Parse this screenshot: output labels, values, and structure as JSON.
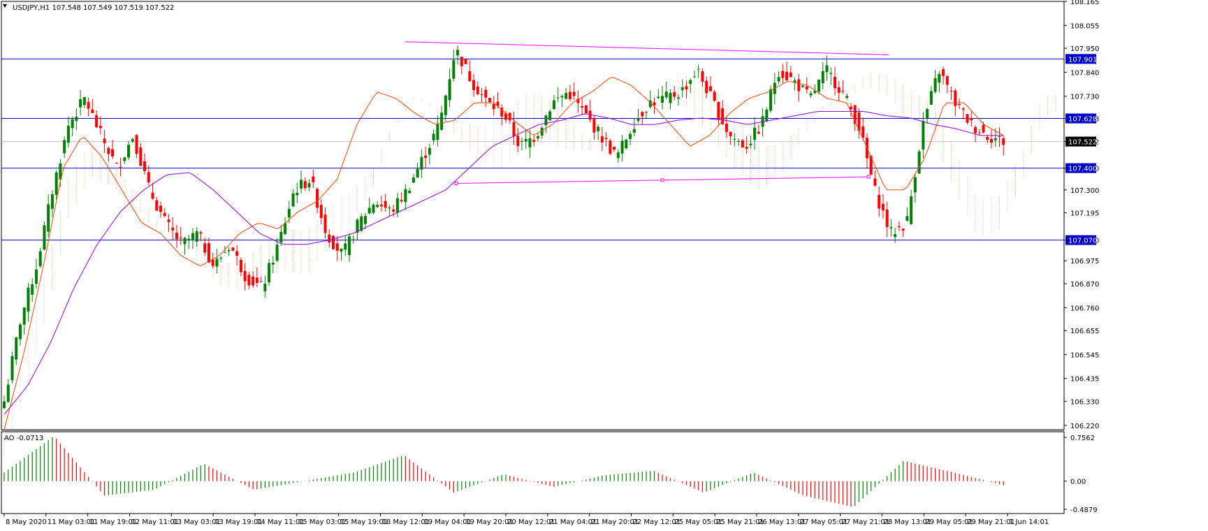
{
  "window": {
    "header": "USDJPY,H1  107.548 107.549 107.519 107.522",
    "ao_header": "AO -0.0713"
  },
  "colors": {
    "bull": "#008000",
    "bear": "#ff0000",
    "ma_fast": "#ff4500",
    "ma_slow": "#9400d3",
    "cloud": "#f4a460",
    "cloud_alt": "#d8bfd8",
    "level": "#0000cd",
    "trend": "#ff00ff",
    "current": "#c0c0c0"
  },
  "chart_data": {
    "type": "candlestick",
    "symbol": "USDJPY",
    "timeframe": "H1",
    "ylim": [
      106.2,
      108.165
    ],
    "price_ticks": [
      "108.165",
      "108.055",
      "107.950",
      "107.840",
      "107.730",
      "107.628",
      "107.522",
      "107.400",
      "107.300",
      "107.195",
      "107.070",
      "106.975",
      "106.870",
      "106.760",
      "106.655",
      "106.545",
      "106.435",
      "106.330",
      "106.220"
    ],
    "x_labels": [
      "8 May 2020",
      "11 May 03:01",
      "11 May 19:01",
      "12 May 11:01",
      "13 May 03:01",
      "13 May 19:01",
      "14 May 11:01",
      "15 May 03:01",
      "15 May 19:01",
      "18 May 12:01",
      "19 May 04:01",
      "19 May 20:01",
      "20 May 12:01",
      "21 May 04:01",
      "21 May 20:01",
      "22 May 12:01",
      "25 May 05:01",
      "25 May 21:01",
      "26 May 13:01",
      "27 May 05:01",
      "27 May 21:01",
      "28 May 13:01",
      "29 May 05:01",
      "29 May 21:01",
      "1 Jun 14:01"
    ],
    "horizontal_levels": [
      {
        "value": 107.901,
        "label": "107.901"
      },
      {
        "value": 107.628,
        "label": "107.628"
      },
      {
        "value": 107.4,
        "label": "107.400"
      },
      {
        "value": 107.07,
        "label": "107.070"
      }
    ],
    "current_price": {
      "value": 107.522,
      "label": "107.522"
    },
    "ohlc_last": {
      "open": 107.548,
      "high": 107.549,
      "low": 107.519,
      "close": 107.522
    },
    "trendlines": [
      {
        "from": [
          "19 May 2020",
          107.98
        ],
        "to": [
          "1 Jun 2020",
          107.92
        ]
      },
      {
        "from": [
          "19 May 2020",
          107.33
        ],
        "to": [
          "29 May 2020",
          107.36
        ]
      }
    ],
    "close_path": [
      106.33,
      106.7,
      106.95,
      107.3,
      107.6,
      107.72,
      107.55,
      107.4,
      107.55,
      107.3,
      107.15,
      107.05,
      107.1,
      106.95,
      107.05,
      106.9,
      106.85,
      107.05,
      107.3,
      107.35,
      107.1,
      107.0,
      107.15,
      107.25,
      107.2,
      107.3,
      107.45,
      107.6,
      107.95,
      107.8,
      107.7,
      107.65,
      107.5,
      107.55,
      107.7,
      107.75,
      107.65,
      107.55,
      107.45,
      107.6,
      107.7,
      107.72,
      107.75,
      107.85,
      107.7,
      107.55,
      107.5,
      107.6,
      107.85,
      107.8,
      107.72,
      107.85,
      107.75,
      107.6,
      107.3,
      107.1,
      107.15,
      107.6,
      107.85,
      107.7,
      107.6,
      107.55,
      107.522
    ],
    "ma_fast": [
      106.2,
      106.55,
      106.95,
      107.4,
      107.55,
      107.45,
      107.3,
      107.15,
      107.1,
      107.0,
      106.95,
      107.0,
      107.1,
      107.15,
      107.12,
      107.2,
      107.25,
      107.35,
      107.6,
      107.75,
      107.72,
      107.65,
      107.6,
      107.62,
      107.7,
      107.7,
      107.62,
      107.55,
      107.6,
      107.7,
      107.75,
      107.82,
      107.78,
      107.7,
      107.6,
      107.5,
      107.55,
      107.65,
      107.72,
      107.75,
      107.8,
      107.78,
      107.72,
      107.7,
      107.5,
      107.3,
      107.3,
      107.45,
      107.7,
      107.7,
      107.6,
      107.55
    ],
    "ma_slow": [
      106.27,
      106.4,
      106.6,
      106.85,
      107.05,
      107.2,
      107.3,
      107.37,
      107.38,
      107.3,
      107.2,
      107.1,
      107.05,
      107.05,
      107.07,
      107.1,
      107.15,
      107.2,
      107.25,
      107.3,
      107.4,
      107.5,
      107.55,
      107.6,
      107.62,
      107.65,
      107.63,
      107.6,
      107.6,
      107.62,
      107.63,
      107.62,
      107.6,
      107.62,
      107.64,
      107.66,
      107.66,
      107.66,
      107.64,
      107.63,
      107.6,
      107.58,
      107.55,
      107.55
    ],
    "ao": {
      "name": "AO",
      "last": -0.0713,
      "ticks": [
        "0.7562",
        "0.00",
        "-0.4879"
      ],
      "ylim": [
        -0.4879,
        0.7562
      ],
      "waves": [
        0.15,
        0.78,
        -0.25,
        -0.15,
        0.3,
        -0.15,
        0.0,
        0.15,
        0.45,
        -0.2,
        0.12,
        -0.1,
        0.1,
        0.18,
        -0.2,
        0.15,
        -0.25,
        -0.45,
        0.35,
        0.15,
        -0.07
      ]
    }
  }
}
